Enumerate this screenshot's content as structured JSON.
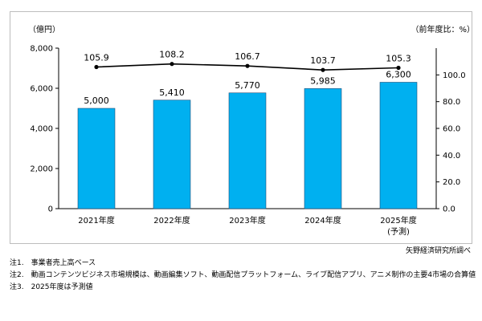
{
  "chart_data": {
    "type": "bar",
    "categories": [
      "2021年度",
      "2022年度",
      "2023年度",
      "2024年度",
      "2025年度"
    ],
    "category_sublabels": [
      "",
      "",
      "",
      "",
      "(予測)"
    ],
    "series": [
      {
        "name": "",
        "type": "bar",
        "axis": "left",
        "values": [
          5000,
          5410,
          5770,
          5985,
          6300
        ],
        "labels": [
          "5,000",
          "5,410",
          "5,770",
          "5,985",
          "6,300"
        ],
        "color": "#00b0f0"
      },
      {
        "name": "",
        "type": "line",
        "axis": "right",
        "values": [
          105.9,
          108.2,
          106.7,
          103.7,
          105.3
        ],
        "labels": [
          "105.9",
          "108.2",
          "106.7",
          "103.7",
          "105.3"
        ],
        "color": "#000000"
      }
    ],
    "left_axis": {
      "unit": "（億円）",
      "ylim": [
        0,
        8000
      ],
      "ticks": [
        "0",
        "2,000",
        "4,000",
        "6,000",
        "8,000"
      ]
    },
    "right_axis": {
      "unit": "（前年度比：%）",
      "ylim": [
        0,
        120
      ],
      "ticks": [
        "0.0",
        "20.0",
        "40.0",
        "60.0",
        "80.0",
        "100.0"
      ]
    },
    "grid": false,
    "legend": "none"
  },
  "source": "矢野経済研究所調べ",
  "notes": [
    "注1.　事業者売上高ベース",
    "注2.　動画コンテンツビジネス市場規模は、動画編集ソフト、動画配信プラットフォーム、ライブ配信アプリ、アニメ制作の主要4市場の合算値",
    "注3.　2025年度は予測値"
  ]
}
